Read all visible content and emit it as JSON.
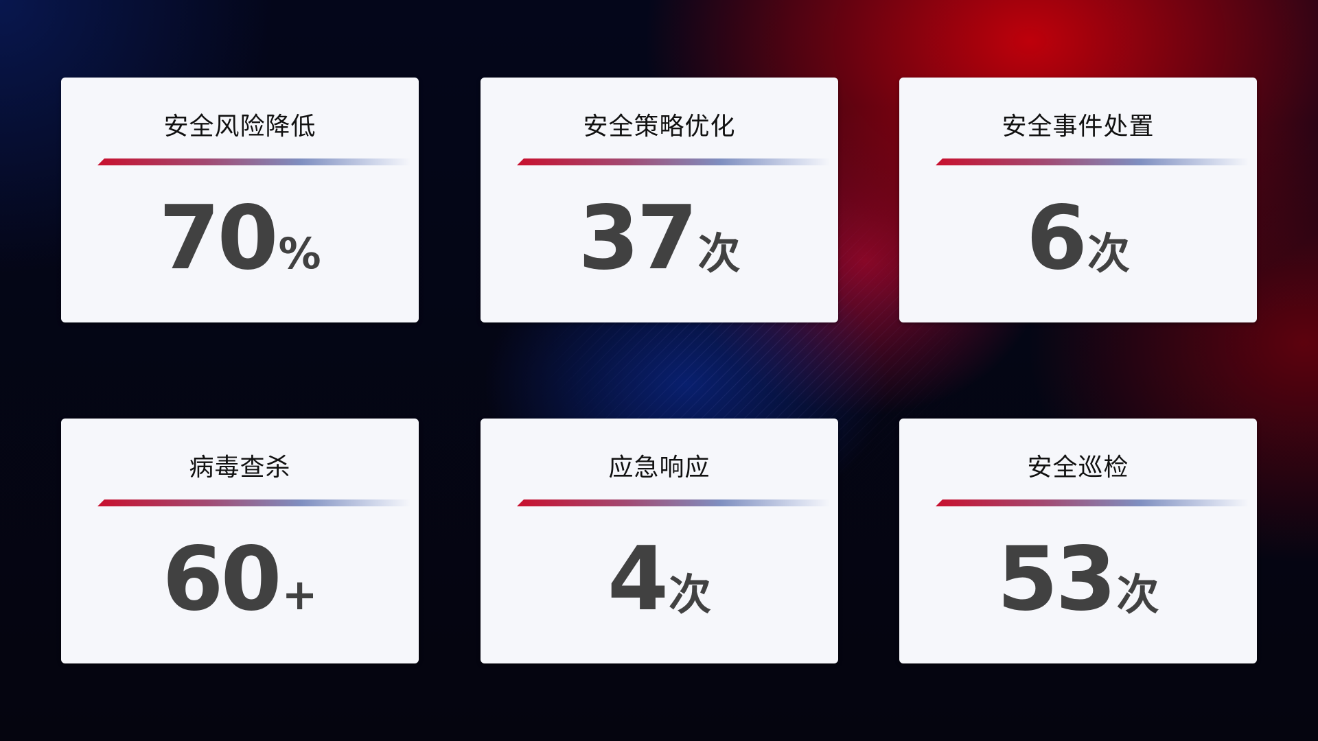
{
  "colors": {
    "accent_red": "#c8102e",
    "accent_blue": "#7f8fc0",
    "card_bg": "#f6f7fb",
    "value_text": "#414141"
  },
  "cards": [
    {
      "title": "安全风险降低",
      "value": "70",
      "unit": "%"
    },
    {
      "title": "安全策略优化",
      "value": "37",
      "unit": "次"
    },
    {
      "title": "安全事件处置",
      "value": "6",
      "unit": "次"
    },
    {
      "title": "病毒查杀",
      "value": "60",
      "unit": "+"
    },
    {
      "title": "应急响应",
      "value": "4",
      "unit": "次"
    },
    {
      "title": "安全巡检",
      "value": "53",
      "unit": "次"
    }
  ]
}
